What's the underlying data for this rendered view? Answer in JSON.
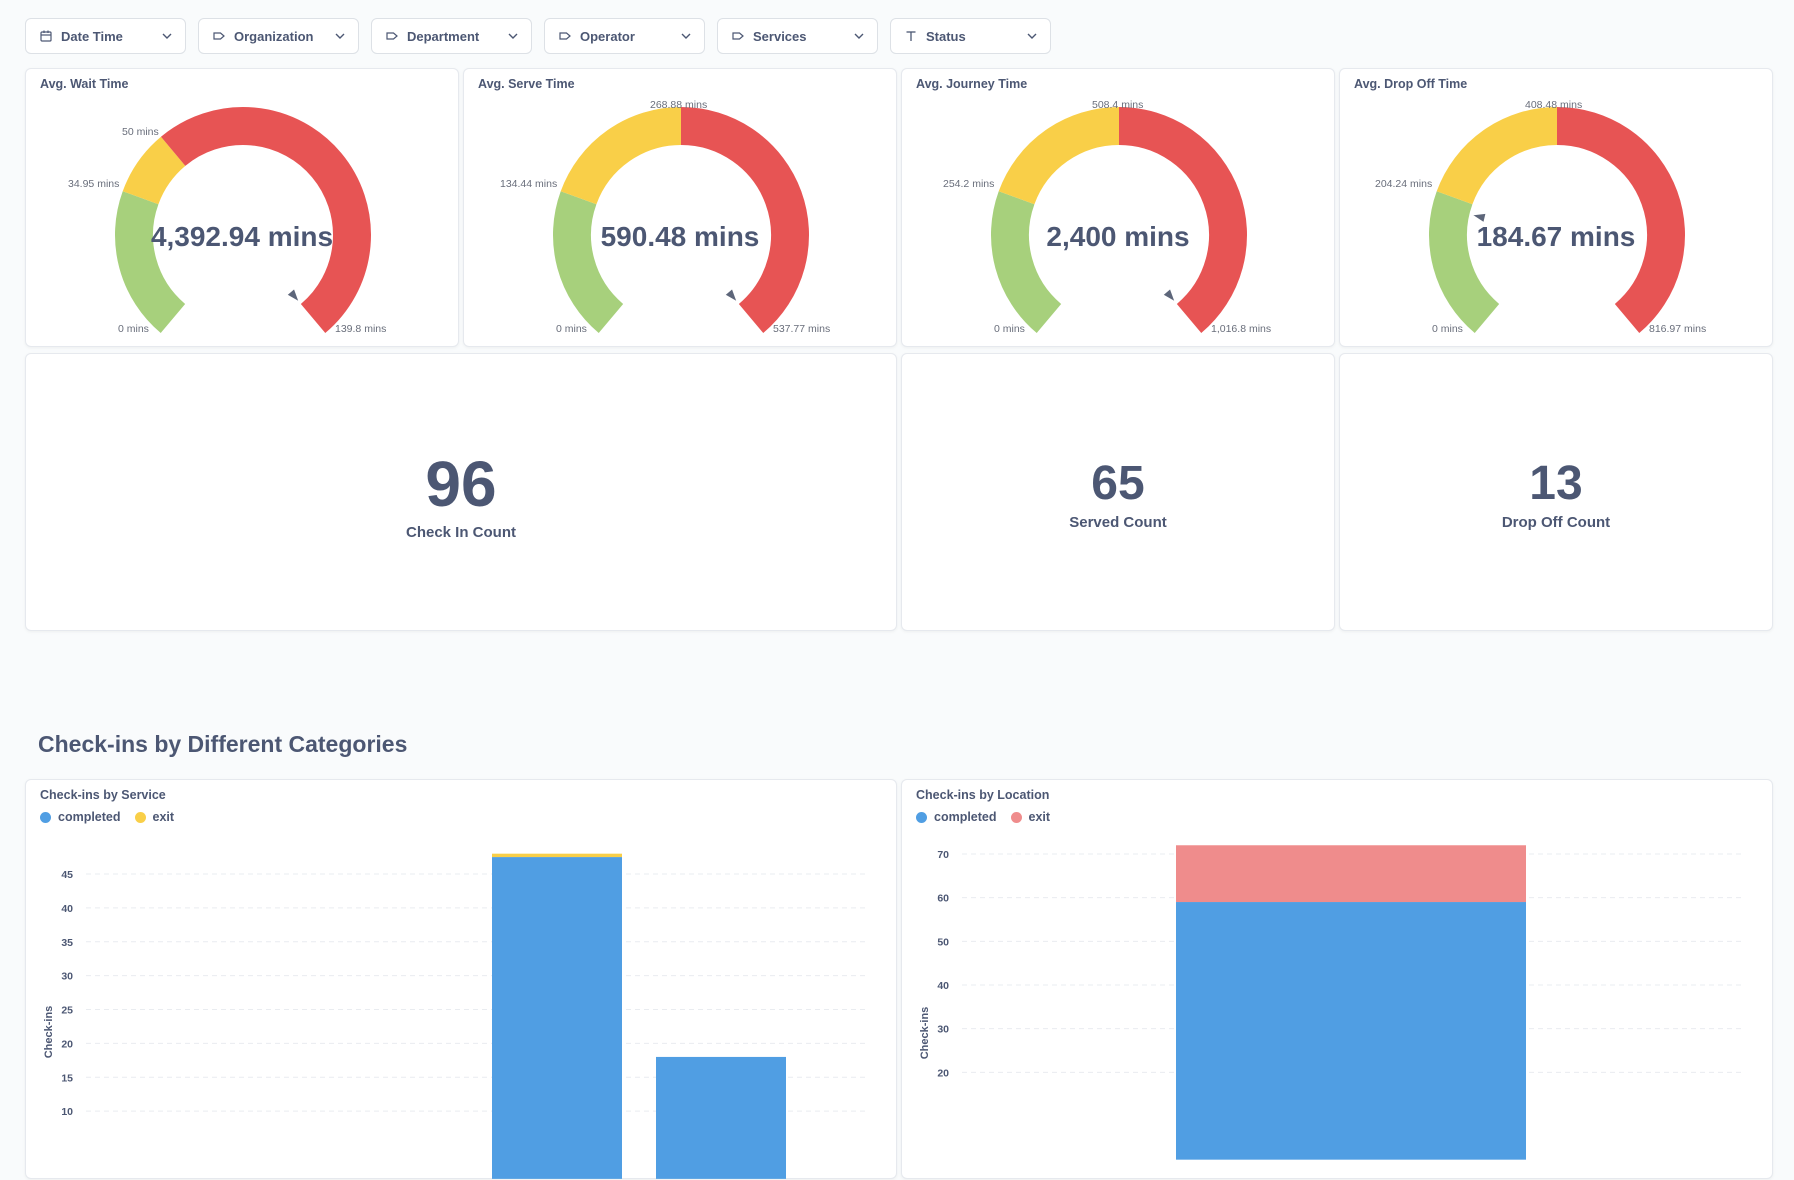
{
  "filters": [
    {
      "label": "Date Time",
      "icon": "calendar-icon"
    },
    {
      "label": "Organization",
      "icon": "tag-icon"
    },
    {
      "label": "Department",
      "icon": "tag-icon"
    },
    {
      "label": "Operator",
      "icon": "tag-icon"
    },
    {
      "label": "Services",
      "icon": "tag-icon"
    },
    {
      "label": "Status",
      "icon": "text-icon"
    }
  ],
  "colors": {
    "green": "#a7d07c",
    "yellow": "#f9cf48",
    "red": "#ed6e6e",
    "red_gauge": "#e75454",
    "blue": "#509ee3",
    "exit_pink": "#ef8c8c",
    "text": "#4c5773"
  },
  "gauges": [
    {
      "title": "Avg. Wait Time",
      "value": "4,392.94 mins",
      "value_num": 4392.94,
      "min_label": "0 mins",
      "max_label": "139.8 mins",
      "t1_label": "34.95 mins",
      "t2_label": "50 mins",
      "min": 0,
      "max": 139.8,
      "t1": 34.95,
      "t2": 50
    },
    {
      "title": "Avg. Serve Time",
      "value": "590.48 mins",
      "value_num": 590.48,
      "min_label": "0 mins",
      "max_label": "537.77 mins",
      "t1_label": "134.44 mins",
      "t2_label": "268.88 mins",
      "min": 0,
      "max": 537.77,
      "t1": 134.44,
      "t2": 268.88
    },
    {
      "title": "Avg. Journey Time",
      "value": "2,400 mins",
      "value_num": 2400,
      "min_label": "0 mins",
      "max_label": "1,016.8 mins",
      "t1_label": "254.2 mins",
      "t2_label": "508.4 mins",
      "min": 0,
      "max": 1016.8,
      "t1": 254.2,
      "t2": 508.4
    },
    {
      "title": "Avg. Drop Off Time",
      "value": "184.67 mins",
      "value_num": 184.67,
      "min_label": "0 mins",
      "max_label": "816.97 mins",
      "t1_label": "204.24 mins",
      "t2_label": "408.48 mins",
      "min": 0,
      "max": 816.97,
      "t1": 204.24,
      "t2": 408.48
    }
  ],
  "scalars": [
    {
      "value": "96",
      "label": "Check In Count"
    },
    {
      "value": "65",
      "label": "Served Count"
    },
    {
      "value": "13",
      "label": "Drop Off Count"
    }
  ],
  "section": {
    "heading": "Check-ins by Different Categories"
  },
  "chart_data": [
    {
      "type": "bar",
      "stacked": true,
      "title": "Check-ins by Service",
      "ylabel": "Check-ins",
      "xlabel": "",
      "ylim": [
        0,
        50
      ],
      "yticks": [
        10,
        15,
        20,
        25,
        30,
        35,
        40,
        45
      ],
      "legend": [
        "completed",
        "exit"
      ],
      "legend_colors": [
        "#509ee3",
        "#f9cf48"
      ],
      "categories": [
        "",
        "",
        "",
        "",
        ""
      ],
      "series": [
        {
          "name": "completed",
          "values": [
            0,
            0,
            0,
            47.5,
            18
          ]
        },
        {
          "name": "exit",
          "values": [
            0,
            0,
            0,
            0.5,
            0
          ]
        }
      ]
    },
    {
      "type": "bar",
      "stacked": true,
      "title": "Check-ins by Location",
      "ylabel": "Check-ins",
      "xlabel": "",
      "ylim": [
        0,
        75
      ],
      "yticks": [
        20,
        30,
        40,
        50,
        60,
        70
      ],
      "legend": [
        "completed",
        "exit"
      ],
      "legend_colors": [
        "#509ee3",
        "#ef8c8c"
      ],
      "categories": [
        ""
      ],
      "series": [
        {
          "name": "completed",
          "values": [
            59
          ]
        },
        {
          "name": "exit",
          "values": [
            13
          ]
        }
      ]
    }
  ]
}
